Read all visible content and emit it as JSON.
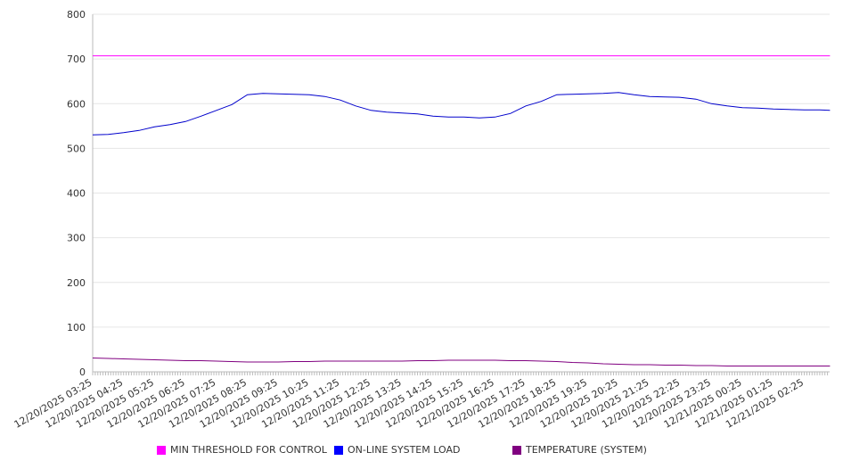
{
  "chart_data": {
    "type": "line",
    "title": "",
    "xlabel": "",
    "ylabel": "",
    "ylim": [
      0,
      800
    ],
    "yticks": [
      "0",
      "100",
      "200",
      "300",
      "400",
      "500",
      "600",
      "700",
      "800"
    ],
    "xlim_hours": [
      0,
      23.83
    ],
    "xtick_labels": [
      "12/20/2025 03:25",
      "12/20/2025 04:25",
      "12/20/2025 05:25",
      "12/20/2025 06:25",
      "12/20/2025 07:25",
      "12/20/2025 08:25",
      "12/20/2025 09:25",
      "12/20/2025 10:25",
      "12/20/2025 11:25",
      "12/20/2025 12:25",
      "12/20/2025 13:25",
      "12/20/2025 14:25",
      "12/20/2025 15:25",
      "12/20/2025 16:25",
      "12/20/2025 17:25",
      "12/20/2025 18:25",
      "12/20/2025 19:25",
      "12/20/2025 20:25",
      "12/20/2025 21:25",
      "12/20/2025 22:25",
      "12/20/2025 23:25",
      "12/21/2025 00:25",
      "12/21/2025 01:25",
      "12/21/2025 02:25"
    ],
    "grid": true,
    "legend_position": "bottom",
    "x_hours": [
      0,
      0.5,
      1,
      1.5,
      2,
      2.5,
      3,
      3.5,
      4,
      4.5,
      5,
      5.5,
      6,
      6.5,
      7,
      7.5,
      8,
      8.5,
      9,
      9.5,
      10,
      10.5,
      11,
      11.5,
      12,
      12.5,
      13,
      13.5,
      14,
      14.5,
      15,
      15.5,
      16,
      16.5,
      17,
      17.5,
      18,
      18.5,
      19,
      19.5,
      20,
      20.5,
      21,
      21.5,
      22,
      22.5,
      23,
      23.5,
      23.83
    ],
    "series": [
      {
        "name": "MIN THRESHOLD FOR CONTROL",
        "color": "#ff00ff",
        "values": [
          707,
          707,
          707,
          707,
          707,
          707,
          707,
          707,
          707,
          707,
          707,
          707,
          707,
          707,
          707,
          707,
          707,
          707,
          707,
          707,
          707,
          707,
          707,
          707,
          707,
          707,
          707,
          707,
          707,
          707,
          707,
          707,
          707,
          707,
          707,
          707,
          707,
          707,
          707,
          707,
          707,
          707,
          707,
          707,
          707,
          707,
          707,
          707,
          707
        ]
      },
      {
        "name": "ON-LINE SYSTEM LOAD",
        "color": "#0000cc",
        "values": [
          530,
          531,
          535,
          540,
          548,
          553,
          560,
          572,
          585,
          598,
          620,
          623,
          622,
          621,
          620,
          616,
          608,
          595,
          585,
          581,
          579,
          577,
          572,
          570,
          570,
          568,
          570,
          578,
          595,
          605,
          620,
          621,
          622,
          623,
          625,
          620,
          616,
          615,
          614,
          610,
          600,
          595,
          591,
          590,
          588,
          587,
          586,
          586,
          585
        ]
      },
      {
        "name": "TEMPERATURE (SYSTEM)",
        "color": "#800080",
        "values": [
          31,
          30,
          29,
          28,
          27,
          26,
          25,
          25,
          24,
          23,
          22,
          22,
          22,
          23,
          23,
          24,
          24,
          24,
          24,
          24,
          24,
          25,
          25,
          26,
          26,
          26,
          26,
          25,
          25,
          24,
          23,
          21,
          20,
          18,
          17,
          16,
          16,
          15,
          15,
          14,
          14,
          13,
          13,
          13,
          13,
          13,
          13,
          13,
          13
        ]
      }
    ]
  },
  "legend": {
    "items": [
      {
        "label": "MIN THRESHOLD FOR CONTROL",
        "color": "#ff00ff"
      },
      {
        "label": "ON-LINE SYSTEM LOAD",
        "color": "#0000ff"
      },
      {
        "label": "TEMPERATURE (SYSTEM)",
        "color": "#800080"
      }
    ]
  }
}
